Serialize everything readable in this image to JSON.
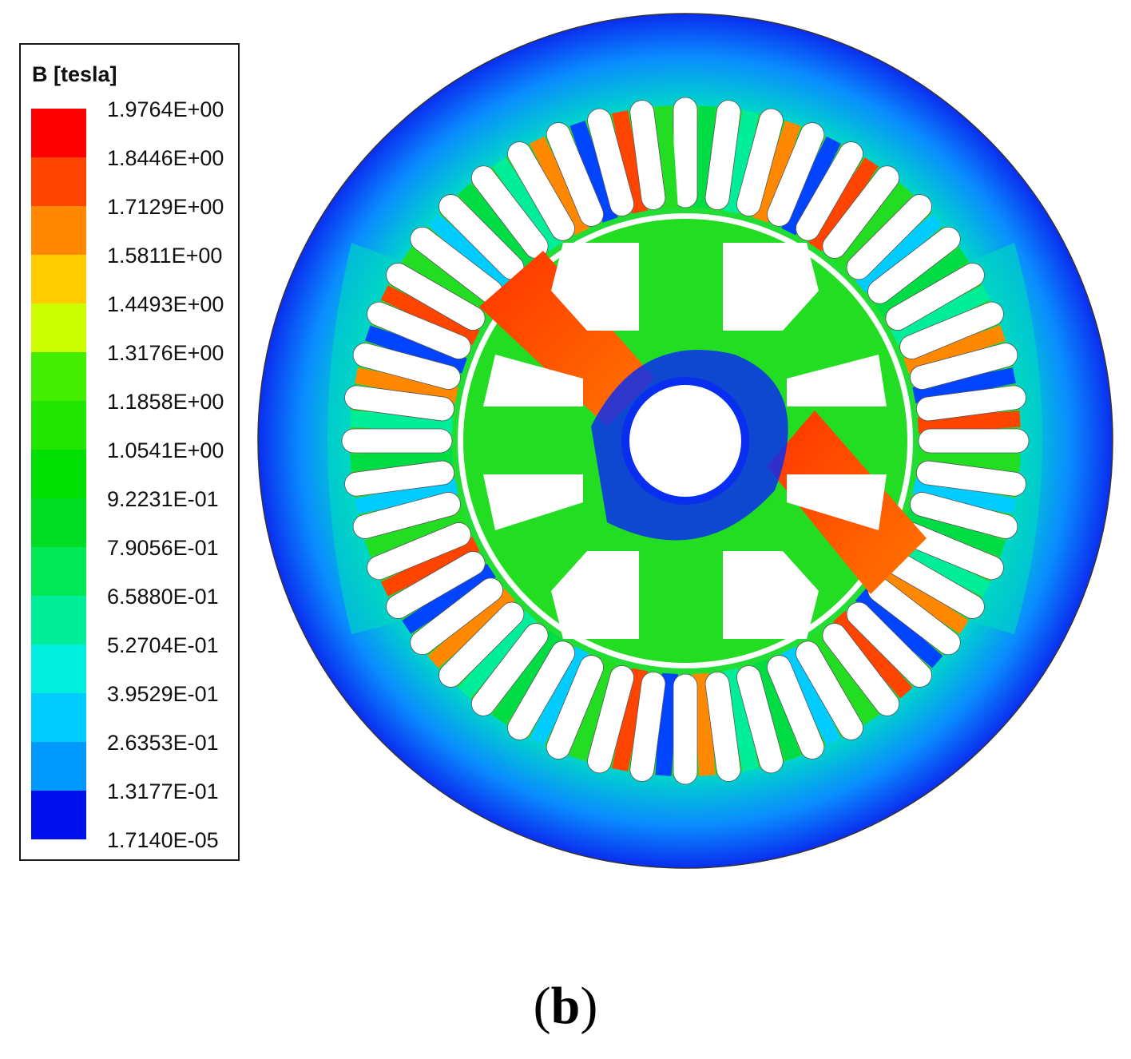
{
  "legend": {
    "title": "B [tesla]",
    "levels": [
      {
        "label": "1.9764E+00",
        "color": "#ff0000"
      },
      {
        "label": "1.8446E+00",
        "color": "#ff4400"
      },
      {
        "label": "1.7129E+00",
        "color": "#ff8800"
      },
      {
        "label": "1.5811E+00",
        "color": "#ffcc00"
      },
      {
        "label": "1.4493E+00",
        "color": "#ccff00"
      },
      {
        "label": "1.3176E+00",
        "color": "#44ee00"
      },
      {
        "label": "1.1858E+00",
        "color": "#22e600"
      },
      {
        "label": "1.0541E+00",
        "color": "#00e000"
      },
      {
        "label": "9.2231E-01",
        "color": "#00dd22"
      },
      {
        "label": "7.9056E-01",
        "color": "#00e855"
      },
      {
        "label": "6.5880E-01",
        "color": "#00ee99"
      },
      {
        "label": "5.2704E-01",
        "color": "#00eedd"
      },
      {
        "label": "3.9529E-01",
        "color": "#00ccff"
      },
      {
        "label": "2.6353E-01",
        "color": "#0099ff"
      },
      {
        "label": "1.3177E-01",
        "color": "#0055ff"
      },
      {
        "label": "1.7140E-05",
        "color": "#0011ee"
      }
    ]
  },
  "caption": {
    "open": "(",
    "letter": "b",
    "close": ")"
  },
  "colors": {
    "stator_core": "#22dd22",
    "stator_outer_low": "#0a2eef",
    "stator_mid": "#00c8ff",
    "rotor_core": "#22dd22",
    "rotor_high": "#ff3300",
    "slot_void": "#ffffff"
  }
}
